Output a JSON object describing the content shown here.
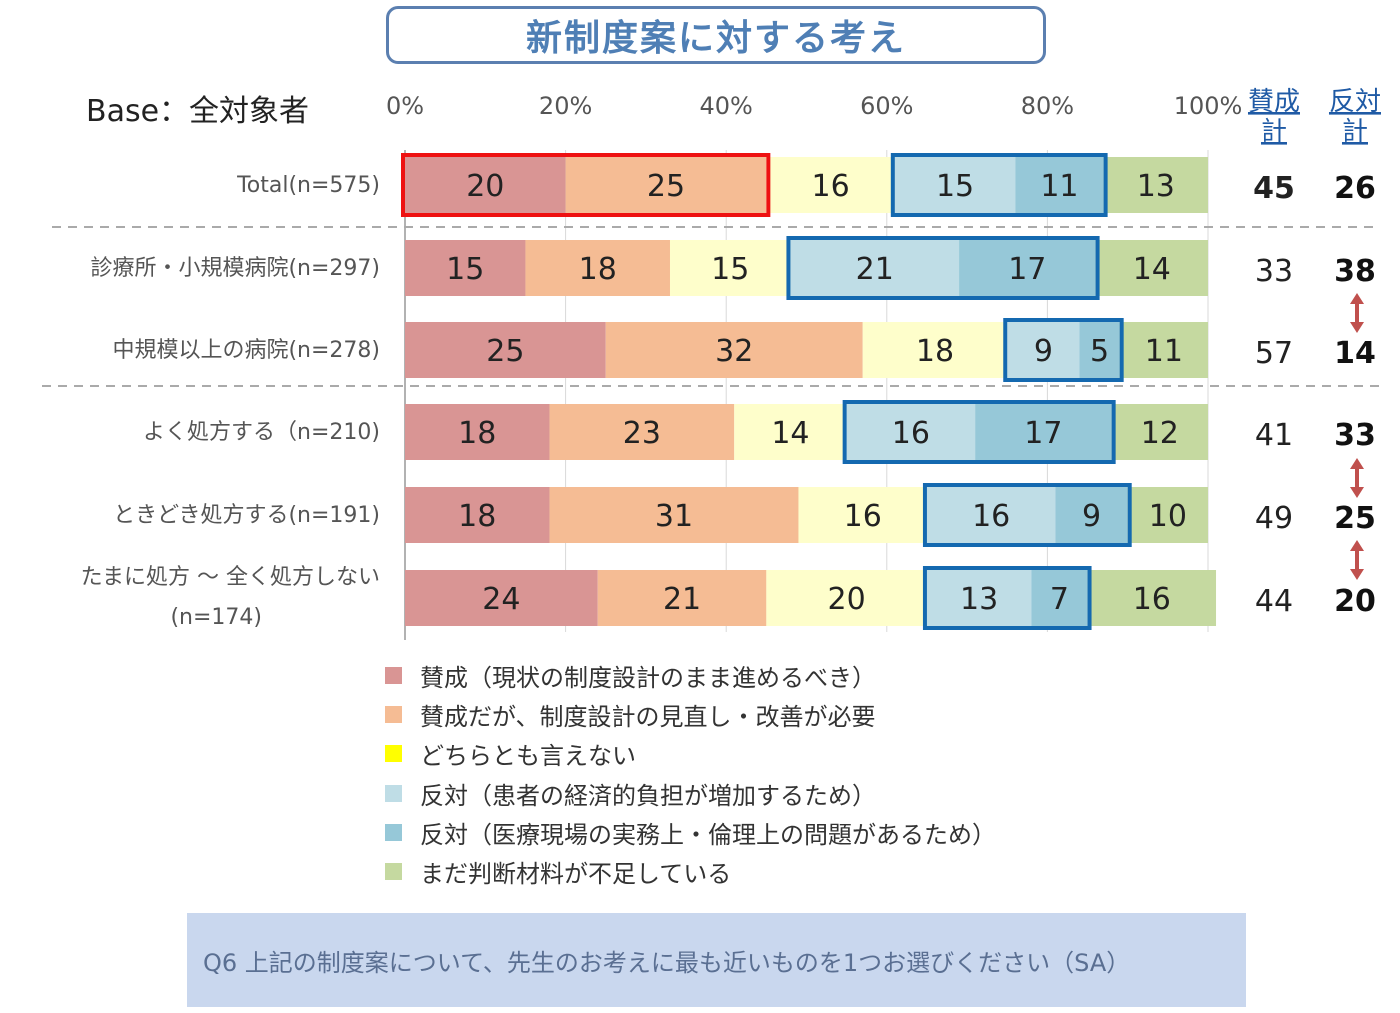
{
  "title": "新制度案に対する考え",
  "base_label": "Base：全対象者",
  "question": "Q6  上記の制度案について、先生のお考えに最も近いものを1つお選びください（SA）",
  "chart_data": {
    "type": "bar",
    "orientation": "horizontal-stacked-100",
    "x_ticks": [
      "0%",
      "20%",
      "40%",
      "60%",
      "80%",
      "100%"
    ],
    "xlim": [
      0,
      100
    ],
    "summary_headers": {
      "agree": [
        "賛成",
        "計"
      ],
      "oppose": [
        "反対",
        "計"
      ]
    },
    "categories": [
      [
        "Total(n=575)"
      ],
      [
        "診療所・小規模病院(n=297)"
      ],
      [
        "中規模以上の病院(n=278)"
      ],
      [
        "よく処方する（n=210)"
      ],
      [
        "ときどき処方する(n=191)"
      ],
      [
        "たまに処方 〜 全く処方しない",
        "(n=174)"
      ]
    ],
    "series": [
      {
        "name": "賛成（現状の制度設計のまま進めるべき）",
        "color": "#d99594",
        "values": [
          20,
          15,
          25,
          18,
          18,
          24
        ]
      },
      {
        "name": "賛成だが、制度設計の見直し・改善が必要",
        "color": "#f5bc94",
        "values": [
          25,
          18,
          32,
          23,
          31,
          21
        ]
      },
      {
        "name": "どちらとも言えない",
        "color": "#fefecb",
        "legend_color": "#ffff00",
        "values": [
          16,
          15,
          18,
          14,
          16,
          20
        ]
      },
      {
        "name": "反対（患者の経済的負担が増加するため）",
        "color": "#bfdde6",
        "values": [
          15,
          21,
          9,
          16,
          16,
          13
        ]
      },
      {
        "name": "反対（医療現場の実務上・倫理上の問題があるため）",
        "color": "#96c8d8",
        "values": [
          11,
          17,
          5,
          17,
          9,
          7
        ]
      },
      {
        "name": "まだ判断材料が不足している",
        "color": "#c5d9a0",
        "values": [
          13,
          14,
          11,
          12,
          10,
          16
        ]
      }
    ],
    "agree_total": [
      45,
      33,
      57,
      41,
      49,
      44
    ],
    "oppose_total": [
      26,
      38,
      14,
      33,
      25,
      20
    ],
    "agree_total_bold": [
      true,
      false,
      false,
      false,
      false,
      false
    ],
    "oppose_total_bold": [
      true,
      true,
      true,
      true,
      true,
      true
    ],
    "highlight_colors": {
      "agree_box": "#ee1111",
      "oppose_box": "#1469b0",
      "arrow": "#c0504d",
      "divider": "#aaaaaa"
    }
  }
}
